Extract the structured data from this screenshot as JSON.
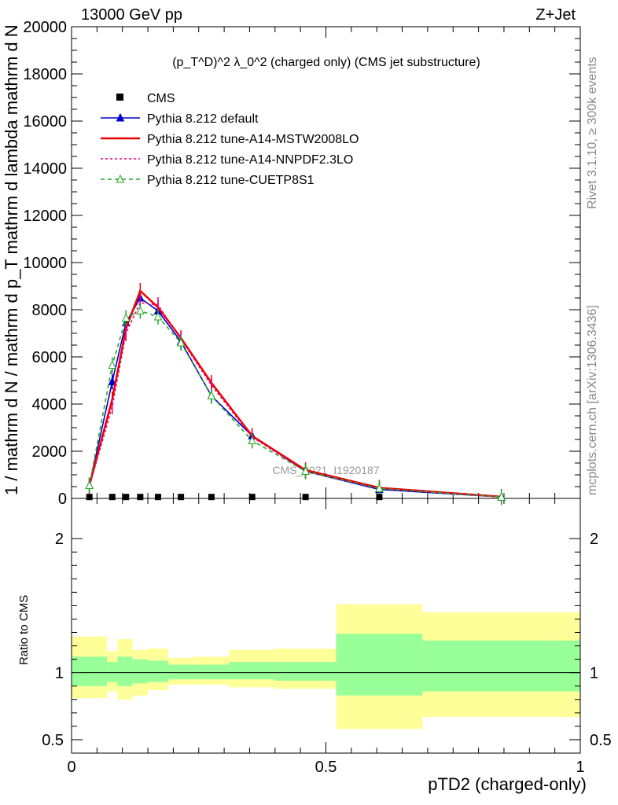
{
  "header": {
    "left": "13000 GeV pp",
    "right": "Z+Jet"
  },
  "side_text": {
    "rivet": "Rivet 3.1.10, ≥ 300k events",
    "mcplots": "mcplots.cern.ch [arXiv:1306.3436]"
  },
  "chart_data": {
    "type": "line",
    "title": "(p_T^D)^2 λ_0^2 (charged only) (CMS jet substructure)",
    "watermark": "CMS_2021_I1920187",
    "xlabel": "pTD2 (charged-only)",
    "ylabel": "1 / mathrm d N / mathrm d p_T mathrm d lambda mathrm d N",
    "ylabel_num": "1",
    "ratio_ylabel": "Ratio to CMS",
    "xlim": [
      0,
      1
    ],
    "ylim": [
      0,
      20000
    ],
    "ratio_ylim": [
      0.4,
      2.3
    ],
    "x_ticks": [
      {
        "v": 0,
        "t": "0"
      },
      {
        "v": 0.5,
        "t": "0.5"
      },
      {
        "v": 1,
        "t": "1"
      }
    ],
    "y_ticks": [
      {
        "v": 0,
        "t": "0"
      },
      {
        "v": 2000,
        "t": "2000"
      },
      {
        "v": 4000,
        "t": "4000"
      },
      {
        "v": 6000,
        "t": "6000"
      },
      {
        "v": 8000,
        "t": "8000"
      },
      {
        "v": 10000,
        "t": "10000"
      },
      {
        "v": 12000,
        "t": "12000"
      },
      {
        "v": 14000,
        "t": "14000"
      },
      {
        "v": 16000,
        "t": "16000"
      },
      {
        "v": 18000,
        "t": "18000"
      },
      {
        "v": 20000,
        "t": "20000"
      }
    ],
    "ratio_ticks": [
      {
        "v": 0.5,
        "t": "0.5"
      },
      {
        "v": 1,
        "t": "1"
      },
      {
        "v": 2,
        "t": "2"
      }
    ],
    "data_points": {
      "name": "CMS",
      "x": [
        0.035,
        0.08,
        0.107,
        0.135,
        0.17,
        0.215,
        0.275,
        0.355,
        0.46,
        0.605
      ],
      "y": [
        60,
        60,
        60,
        60,
        60,
        60,
        60,
        60,
        60,
        60
      ]
    },
    "series": [
      {
        "name": "Pythia 8.212 default",
        "color": "#0000cc",
        "dash": "",
        "marker": "triangle-filled",
        "x": [
          0.035,
          0.08,
          0.107,
          0.135,
          0.17,
          0.215,
          0.275,
          0.355,
          0.46,
          0.605,
          0.845
        ],
        "y": [
          550,
          4950,
          7450,
          8500,
          7950,
          6650,
          4350,
          2650,
          1150,
          380,
          60
        ]
      },
      {
        "name": "Pythia 8.212 tune-A14-MSTW2008LO",
        "color": "#ee0000",
        "dash": "",
        "marker": "none",
        "x": [
          0.035,
          0.08,
          0.107,
          0.135,
          0.17,
          0.215,
          0.275,
          0.355,
          0.46,
          0.605,
          0.845
        ],
        "y": [
          550,
          4200,
          7200,
          8800,
          8100,
          6800,
          4900,
          2650,
          1200,
          450,
          70
        ]
      },
      {
        "name": "Pythia 8.212 tune-A14-NNPDF2.3LO",
        "color": "#ee0077",
        "dash": "3,3",
        "marker": "none",
        "x": [
          0.035,
          0.08,
          0.107,
          0.135,
          0.17,
          0.215,
          0.275,
          0.355,
          0.46,
          0.605,
          0.845
        ],
        "y": [
          500,
          3900,
          7000,
          8300,
          8200,
          6750,
          4800,
          2600,
          1150,
          420,
          60
        ]
      },
      {
        "name": "Pythia 8.212 tune-CUETP8S1",
        "color": "#22aa22",
        "dash": "5,4",
        "marker": "triangle-open",
        "x": [
          0.035,
          0.08,
          0.107,
          0.135,
          0.17,
          0.215,
          0.275,
          0.355,
          0.46,
          0.605,
          0.845
        ],
        "y": [
          550,
          5650,
          7650,
          7950,
          7700,
          6600,
          4350,
          2450,
          1150,
          420,
          60
        ]
      }
    ],
    "ratio_bands": {
      "edges": [
        0.0,
        0.07,
        0.09,
        0.12,
        0.15,
        0.19,
        0.24,
        0.31,
        0.4,
        0.52,
        0.69,
        1.0
      ],
      "green_low": [
        0.9,
        0.93,
        0.9,
        0.92,
        0.93,
        0.95,
        0.95,
        0.95,
        0.94,
        0.83,
        0.86
      ],
      "green_high": [
        1.12,
        1.08,
        1.12,
        1.1,
        1.09,
        1.06,
        1.06,
        1.08,
        1.08,
        1.29,
        1.24
      ],
      "yellow_low": [
        0.81,
        0.86,
        0.8,
        0.83,
        0.87,
        0.91,
        0.91,
        0.89,
        0.88,
        0.58,
        0.67
      ],
      "yellow_high": [
        1.27,
        1.16,
        1.25,
        1.17,
        1.18,
        1.11,
        1.12,
        1.17,
        1.18,
        1.51,
        1.45
      ]
    },
    "colors": {
      "green": "#99ff99",
      "yellow": "#ffff99"
    }
  }
}
